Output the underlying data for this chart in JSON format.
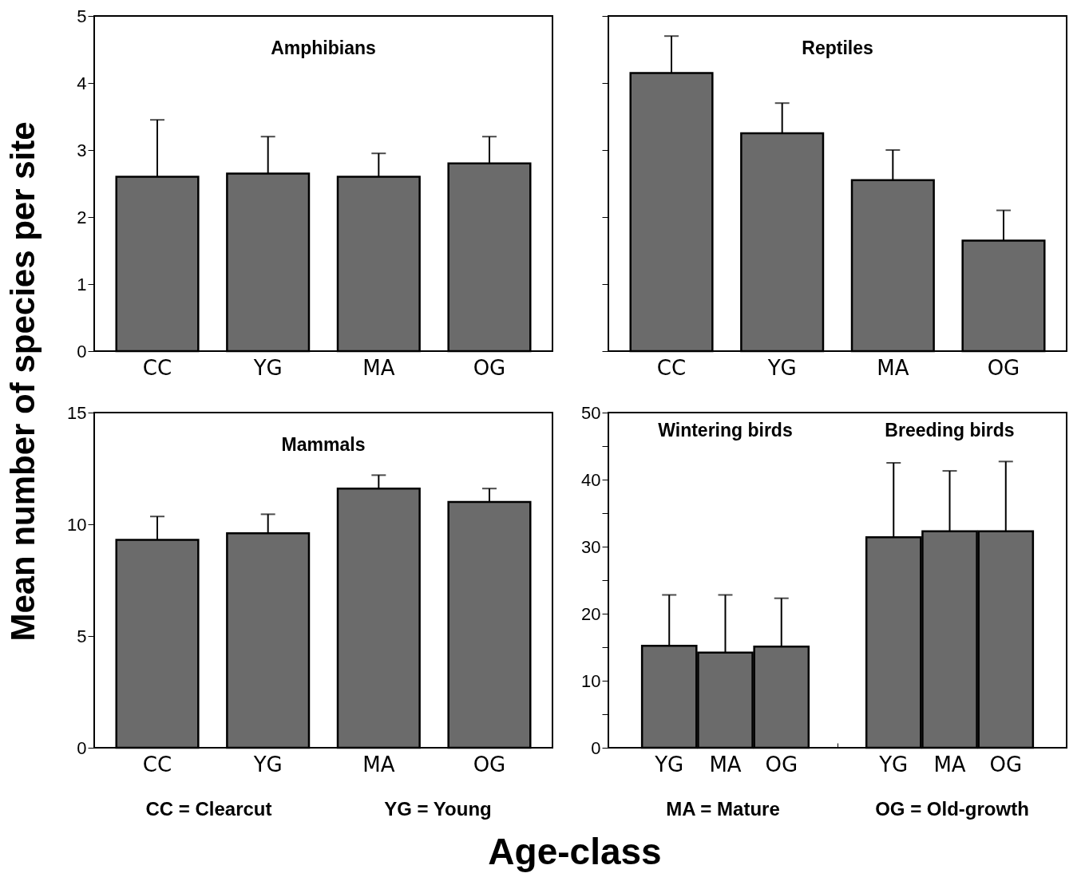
{
  "chart_data": [
    {
      "type": "bar",
      "title": "Amphibians",
      "ylabel": "Mean number of species per site",
      "categories": [
        "CC",
        "YG",
        "MA",
        "OG"
      ],
      "values": [
        2.6,
        2.65,
        2.6,
        2.8
      ],
      "errors": [
        [
          2.6,
          3.45
        ],
        [
          2.65,
          3.2
        ],
        [
          2.6,
          2.95
        ],
        [
          2.8,
          3.2
        ]
      ],
      "color": "#6b6b6b",
      "ylim": [
        0,
        5
      ],
      "yticks": [
        0,
        1,
        2,
        3,
        4,
        5
      ],
      "grid": false
    },
    {
      "type": "bar",
      "title": "Reptiles",
      "categories": [
        "CC",
        "YG",
        "MA",
        "OG"
      ],
      "values": [
        4.15,
        3.25,
        2.55,
        1.65
      ],
      "errors": [
        [
          4.15,
          4.7
        ],
        [
          3.25,
          3.7
        ],
        [
          2.55,
          3.0
        ],
        [
          1.65,
          2.1
        ]
      ],
      "color": "#6b6b6b",
      "ylim": [
        0,
        5
      ],
      "yticks": [
        0,
        1,
        2,
        3,
        4,
        5
      ],
      "tick_labels": "x",
      "grid": false
    },
    {
      "type": "bar",
      "title": "Mammals",
      "xlabel": "Age-class",
      "categories": [
        "CC",
        "YG",
        "MA",
        "OG"
      ],
      "values": [
        9.3,
        9.6,
        11.6,
        11.0
      ],
      "errors": [
        [
          9.3,
          10.35
        ],
        [
          9.6,
          10.45
        ],
        [
          11.6,
          12.2
        ],
        [
          11.0,
          11.6
        ]
      ],
      "color": "#6b6b6b",
      "ylim": [
        0,
        15
      ],
      "yticks": [
        0,
        5,
        10,
        15
      ],
      "grid": false,
      "annotations": [
        "CC  =  Clearcut",
        "YG  =  Young"
      ]
    },
    {
      "type": "bar",
      "categories": [
        "YG",
        "MA",
        "OG",
        null,
        "YG",
        "MA",
        "OG"
      ],
      "values": [
        15.2,
        14.2,
        15.1,
        null,
        31.4,
        32.3,
        32.3
      ],
      "errors": [
        [
          15.2,
          22.8
        ],
        [
          14.2,
          22.8
        ],
        [
          15.1,
          22.3
        ],
        null,
        [
          31.4,
          42.5
        ],
        [
          32.3,
          41.3
        ],
        [
          32.3,
          42.7
        ]
      ],
      "color": "#6b6b6b",
      "ylim": [
        0,
        50
      ],
      "yticks": [
        0,
        {
          "value": 5,
          "label": null
        },
        10,
        {
          "value": 15,
          "label": null
        },
        20,
        {
          "value": 25,
          "label": null
        },
        30,
        {
          "value": 35,
          "label": null
        },
        40,
        {
          "value": 45,
          "label": null
        },
        50
      ],
      "grid": false,
      "annotations": [
        "Wintering birds",
        "Breeding birds",
        "MA  =  Mature",
        "OG  =  Old-growth"
      ]
    }
  ]
}
